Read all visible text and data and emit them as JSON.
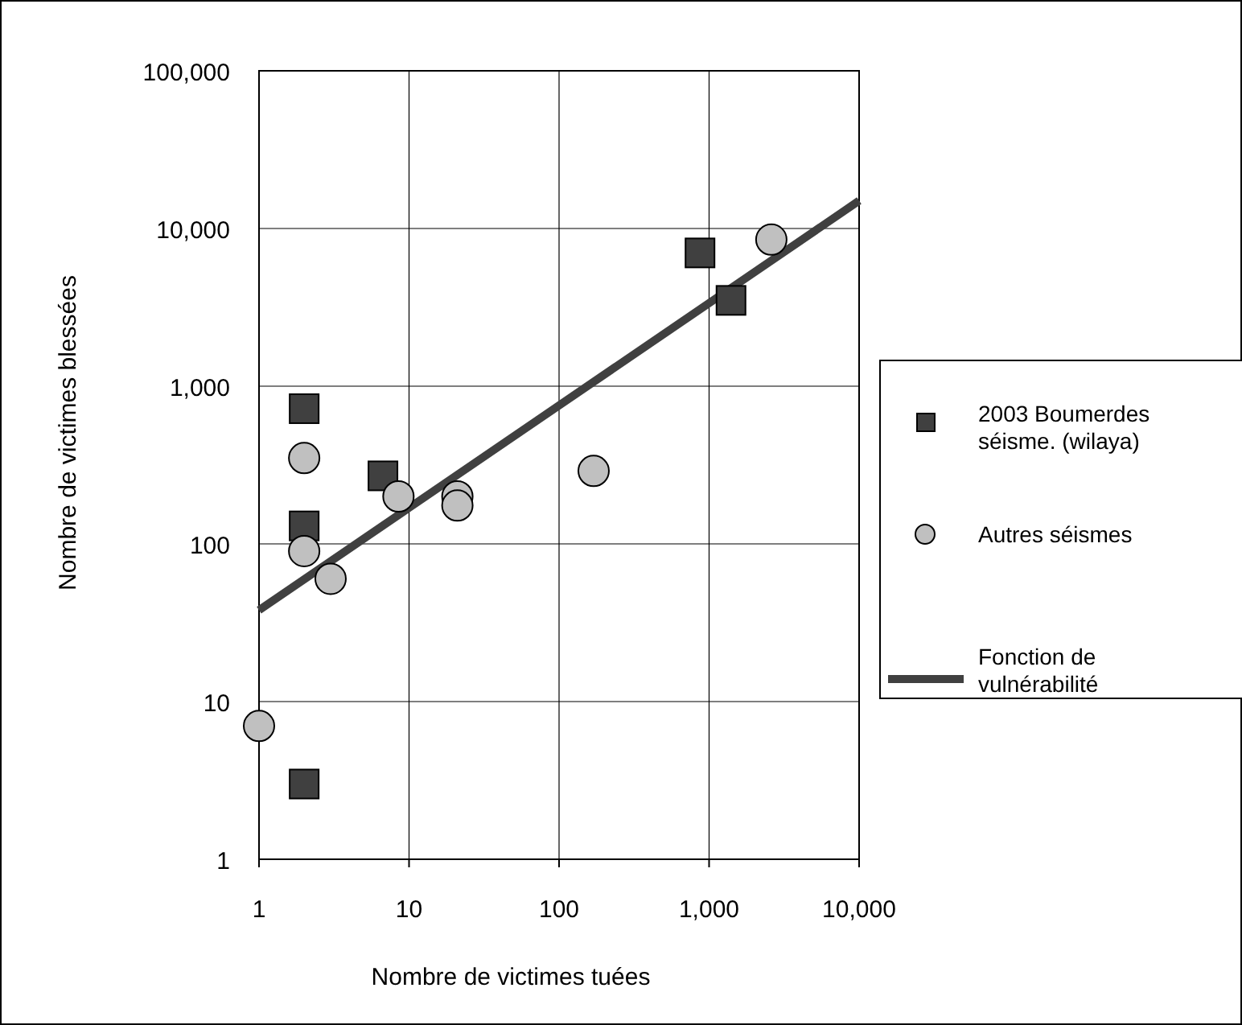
{
  "chart_data": {
    "type": "scatter",
    "xlabel": "Nombre de victimes tuées",
    "ylabel": "Nombre de victimes blessées",
    "log": "xy",
    "grid": true,
    "legend": "right",
    "xlim": [
      1,
      10000
    ],
    "xticks": [
      1,
      10,
      100,
      {
        "value": 1000,
        "label": "1,000"
      },
      {
        "value": 10000,
        "label": "10,000"
      }
    ],
    "ylim": [
      1,
      100000
    ],
    "yticks": [
      1,
      10,
      100,
      {
        "value": 1000,
        "label": "1,000"
      },
      {
        "value": 10000,
        "label": "10,000"
      },
      {
        "value": 100000,
        "label": "100,000"
      }
    ],
    "series": [
      {
        "name": "2003 Boumerdes séisme. (wilaya)",
        "type": "scatter",
        "marker": "square",
        "color": "#404040",
        "x": [
          2,
          2,
          2,
          6.7,
          870,
          1400
        ],
        "values": [
          720,
          130,
          3,
          270,
          7000,
          3500
        ]
      },
      {
        "name": "Autres séismes",
        "type": "scatter",
        "marker": "circle",
        "color": "#c0c0c0",
        "x": [
          1,
          2,
          2,
          3,
          8.5,
          21,
          21,
          170,
          2600
        ],
        "values": [
          7,
          350,
          90,
          60,
          200,
          200,
          175,
          290,
          8500
        ]
      },
      {
        "name": "Fonction de vulnérabilité",
        "type": "line",
        "marker": "none",
        "line_style": "solid",
        "color": "#404040",
        "x": [
          1,
          10000
        ],
        "values": [
          38,
          15000
        ]
      }
    ]
  }
}
